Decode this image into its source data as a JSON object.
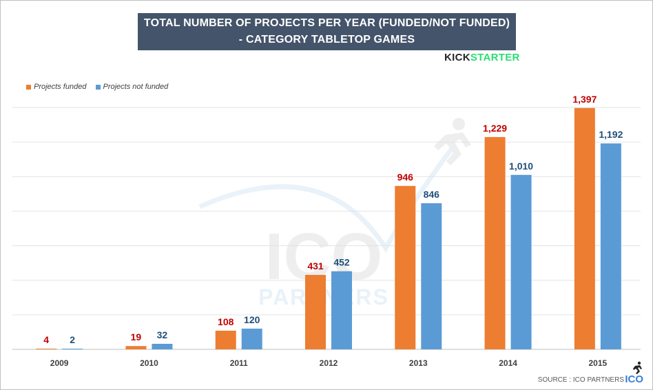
{
  "title_line1": "TOTAL NUMBER OF PROJECTS PER YEAR (FUNDED/NOT FUNDED)",
  "title_line2": "- CATEGORY TABLETOP GAMES",
  "brand": {
    "part1": "KICK",
    "part2": "STARTER"
  },
  "source": "SOURCE : ICO PARTNERS",
  "ico_mark": "ICO",
  "watermark": {
    "line1": "ICO",
    "line2": "PARTNERS"
  },
  "colors": {
    "funded": "#ed7d31",
    "not_funded": "#5b9bd5",
    "funded_label": "#c00000",
    "not_funded_label": "#1f4e79",
    "title_bg": "#44546a"
  },
  "chart_data": {
    "type": "bar",
    "title": "TOTAL NUMBER OF PROJECTS PER YEAR (FUNDED/NOT FUNDED) - CATEGORY TABLETOP GAMES",
    "categories": [
      "2009",
      "2010",
      "2011",
      "2012",
      "2013",
      "2014",
      "2015"
    ],
    "series": [
      {
        "name": "Projects funded",
        "values": [
          4,
          19,
          108,
          431,
          946,
          1229,
          1397
        ],
        "labels": [
          "4",
          "19",
          "108",
          "431",
          "946",
          "1,229",
          "1,397"
        ]
      },
      {
        "name": "Projects not funded",
        "values": [
          2,
          32,
          120,
          452,
          846,
          1010,
          1192
        ],
        "labels": [
          "2",
          "32",
          "120",
          "452",
          "846",
          "1,010",
          "1,192"
        ]
      }
    ],
    "ylim": [
      0,
      1400
    ],
    "xlabel": "",
    "ylabel": "",
    "grid": true,
    "legend": "top-left"
  }
}
